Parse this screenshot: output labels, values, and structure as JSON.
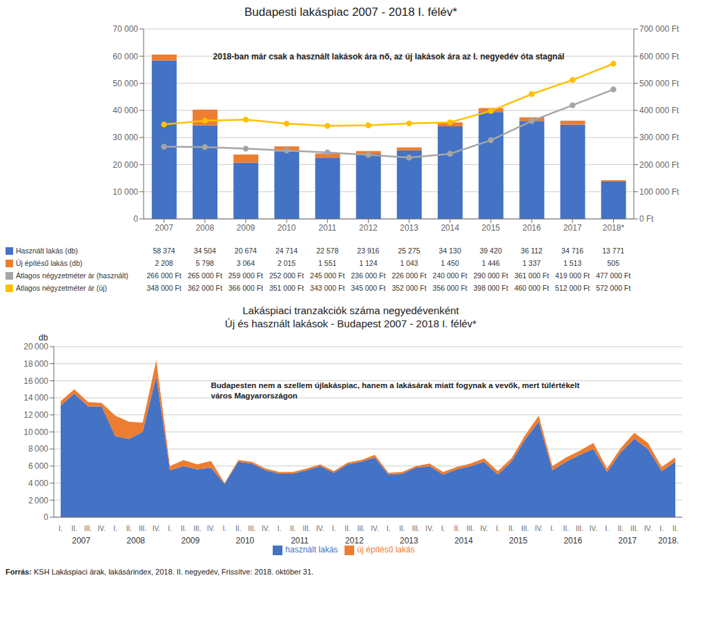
{
  "chart_data": [
    {
      "type": "bar",
      "title": "Budapesti lakáspiac 2007 - 2018 I. félév*",
      "annotations": [
        "2018-ban már csak a használt lakások ára nő, az új lakások ára az I. negyedév óta stagnál"
      ],
      "categories": [
        "2007",
        "2008",
        "2009",
        "2010",
        "2011",
        "2012",
        "2013",
        "2014",
        "2015",
        "2016",
        "2017",
        "2018*"
      ],
      "stacked": true,
      "grid": true,
      "series": [
        {
          "name": "Használt lakás (db)",
          "type": "bar",
          "color": "#4472C4",
          "values": [
            58374,
            34504,
            20674,
            24714,
            22578,
            23916,
            25275,
            34130,
            39420,
            36112,
            34716,
            13771
          ],
          "value_labels": [
            "58 374",
            "34 504",
            "20 674",
            "24 714",
            "22 578",
            "23 916",
            "25 275",
            "34 130",
            "39 420",
            "36 112",
            "34 716",
            "13 771"
          ]
        },
        {
          "name": "Új építésű lakás (db)",
          "type": "bar",
          "color": "#ED7D31",
          "values": [
            2208,
            5798,
            3064,
            2015,
            1551,
            1124,
            1043,
            1450,
            1446,
            1337,
            1513,
            505
          ],
          "value_labels": [
            "2 208",
            "5 798",
            "3 064",
            "2 015",
            "1 551",
            "1 124",
            "1 043",
            "1 450",
            "1 446",
            "1 337",
            "1 513",
            "505"
          ]
        },
        {
          "name": "Átlagos négyzetméter ár (használt)",
          "type": "line",
          "axis": "y2",
          "marker": "circle",
          "color": "#A6A6A6",
          "values": [
            266000,
            265000,
            259000,
            252000,
            245000,
            236000,
            226000,
            240000,
            290000,
            361000,
            419000,
            477000
          ],
          "value_labels": [
            "266 000 Ft",
            "265 000 Ft",
            "259 000 Ft",
            "252 000 Ft",
            "245 000 Ft",
            "236 000 Ft",
            "226 000 Ft",
            "240 000 Ft",
            "290 000 Ft",
            "361 000 Ft",
            "419 000 Ft",
            "477 000 Ft"
          ]
        },
        {
          "name": "Átlagos négyzetméter ár (új)",
          "type": "line",
          "axis": "y2",
          "marker": "circle",
          "color": "#FFC000",
          "values": [
            348000,
            362000,
            366000,
            351000,
            343000,
            345000,
            352000,
            356000,
            398000,
            460000,
            512000,
            572000
          ],
          "value_labels": [
            "348 000 Ft",
            "362 000 Ft",
            "366 000 Ft",
            "351 000 Ft",
            "343 000 Ft",
            "345 000 Ft",
            "352 000 Ft",
            "356 000 Ft",
            "398 000 Ft",
            "460 000 Ft",
            "512 000 Ft",
            "572 000 Ft"
          ]
        }
      ],
      "ylim": [
        0,
        70000
      ],
      "yticks": [
        0,
        {
          "value": 10000,
          "label": "10 000"
        },
        {
          "value": 20000,
          "label": "20 000"
        },
        {
          "value": 30000,
          "label": "30 000"
        },
        {
          "value": 40000,
          "label": "40 000"
        },
        {
          "value": 50000,
          "label": "50 000"
        },
        {
          "value": 60000,
          "label": "60 000"
        },
        {
          "value": 70000,
          "label": "70 000"
        }
      ],
      "y2lim": [
        0,
        700000
      ],
      "y2ticks": [
        {
          "value": 0,
          "label": "0 Ft"
        },
        {
          "value": 100000,
          "label": "100 000 Ft"
        },
        {
          "value": 200000,
          "label": "200 000 Ft"
        },
        {
          "value": 300000,
          "label": "300 000 Ft"
        },
        {
          "value": 400000,
          "label": "400 000 Ft"
        },
        {
          "value": 500000,
          "label": "500 000 Ft"
        },
        {
          "value": 600000,
          "label": "600 000 Ft"
        },
        {
          "value": 700000,
          "label": "700 000 Ft"
        }
      ]
    },
    {
      "type": "area",
      "title": "Lakáspiaci tranzakciók száma negyedévenként",
      "subtitle": "Új és használt lakások - Budapest 2007 - 2018 I. félév*",
      "ylabel": "db",
      "annotations": [
        "Budapesten nem a szellem újlakáspiac, hanem a lakásárak miatt fogynak a vevők, mert túlértékelt város Magyarországon"
      ],
      "categories": [
        "I.",
        "II.",
        "III.",
        "IV.",
        "I.",
        "II.",
        "III.",
        "IV.",
        "I.",
        "II.",
        "III.",
        "IV.",
        "I.",
        "II.",
        "III.",
        "IV.",
        "I.",
        "II.",
        "III.",
        "IV.",
        "I.",
        "II.",
        "III.",
        "IV.",
        "I.",
        "II.",
        "III.",
        "IV.",
        "I.",
        "II.",
        "III.",
        "IV.",
        "I.",
        "II.",
        "III.",
        "IV.",
        "I.",
        "II.",
        "III.",
        "IV.",
        "I.",
        "II.",
        "III.",
        "IV.",
        "I.",
        "II."
      ],
      "x_groups": [
        "2007",
        "2008",
        "2009",
        "2010",
        "2011",
        "2012",
        "2013",
        "2014",
        "2015",
        "2016",
        "2017",
        "2018."
      ],
      "stacked": true,
      "grid": true,
      "legend": "bottom",
      "series": [
        {
          "name": "használt lakás",
          "color": "#4472C4",
          "values": [
            13100,
            14500,
            13000,
            13000,
            9500,
            9200,
            10000,
            16500,
            5500,
            6000,
            5600,
            5800,
            3900,
            6500,
            6300,
            5500,
            5100,
            5100,
            5500,
            6000,
            5200,
            6200,
            6500,
            7000,
            5000,
            5100,
            5800,
            6000,
            5000,
            5600,
            6000,
            6500,
            5000,
            6500,
            9100,
            11200,
            5500,
            6500,
            7300,
            8000,
            5300,
            7600,
            9200,
            8000,
            5400,
            6500
          ]
        },
        {
          "name": "új építésű lakás",
          "color": "#ED7D31",
          "values": [
            500,
            500,
            500,
            400,
            2400,
            2000,
            1100,
            1900,
            500,
            700,
            600,
            800,
            100,
            200,
            200,
            200,
            200,
            200,
            200,
            200,
            200,
            200,
            200,
            300,
            200,
            200,
            200,
            300,
            300,
            300,
            300,
            400,
            400,
            400,
            500,
            700,
            500,
            500,
            500,
            700,
            400,
            500,
            700,
            700,
            500,
            500
          ]
        }
      ],
      "ylim": [
        0,
        20000
      ],
      "yticks": [
        0,
        {
          "value": 2000,
          "label": "2 000"
        },
        {
          "value": 4000,
          "label": "4 000"
        },
        {
          "value": 6000,
          "label": "6 000"
        },
        {
          "value": 8000,
          "label": "8 000"
        },
        {
          "value": 10000,
          "label": "10 000"
        },
        {
          "value": 12000,
          "label": "12 000"
        },
        {
          "value": 14000,
          "label": "14 000"
        },
        {
          "value": 16000,
          "label": "16 000"
        },
        {
          "value": 18000,
          "label": "18 000"
        },
        {
          "value": 20000,
          "label": "20 000"
        }
      ]
    }
  ],
  "footer": [
    "Forrás:",
    " KSH Lakáspiaci árak, lakásárindex, 2018. II. negyedév, Frissítve: 2018. október 31."
  ]
}
